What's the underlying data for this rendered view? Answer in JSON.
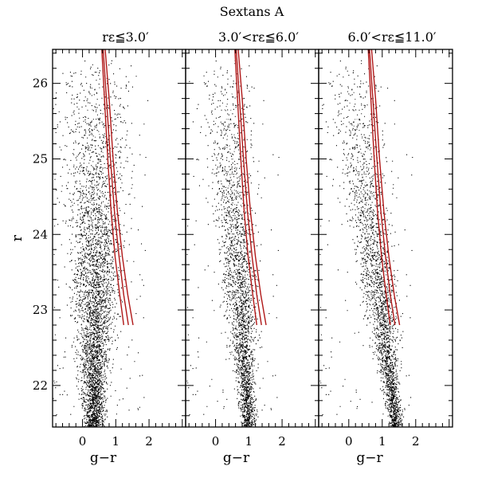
{
  "figure": {
    "title": "Sextans A"
  },
  "chart_data": {
    "type": "scatter",
    "title": "Sextans A",
    "xlabel": "g−r",
    "ylabel": "r",
    "xlim": [
      -0.9,
      3.1
    ],
    "ylim": [
      26.45,
      21.45
    ],
    "y_inverted": true,
    "x_ticks": [
      0,
      1,
      2
    ],
    "x_tick_labels": [
      "0",
      "1",
      "2"
    ],
    "y_ticks": [
      22,
      23,
      24,
      25,
      26
    ],
    "y_tick_labels": [
      "22",
      "23",
      "24",
      "25",
      "26"
    ],
    "grid": false,
    "panels": [
      {
        "label": "rε≦3.0′",
        "density_center": [
          [
            22.8,
            0.35
          ],
          [
            25.5,
            0.4
          ]
        ],
        "spread": 0.45,
        "star_count": 9000,
        "isochrones": [
          {
            "name": "",
            "color": "#b01818",
            "points": [
              [
                0.58,
                26.45
              ],
              [
                0.66,
                25.8
              ],
              [
                0.76,
                25.0
              ],
              [
                0.86,
                24.3
              ],
              [
                0.98,
                23.7
              ],
              [
                1.12,
                23.2
              ],
              [
                1.24,
                22.8
              ]
            ]
          },
          {
            "name": "",
            "color": "#b01818",
            "points": [
              [
                0.62,
                26.45
              ],
              [
                0.72,
                25.8
              ],
              [
                0.84,
                25.0
              ],
              [
                0.96,
                24.3
              ],
              [
                1.1,
                23.7
              ],
              [
                1.24,
                23.2
              ],
              [
                1.38,
                22.8
              ]
            ]
          },
          {
            "name": "",
            "color": "#b01818",
            "points": [
              [
                0.68,
                26.45
              ],
              [
                0.8,
                25.8
              ],
              [
                0.92,
                25.0
              ],
              [
                1.05,
                24.3
              ],
              [
                1.2,
                23.7
              ],
              [
                1.36,
                23.2
              ],
              [
                1.52,
                22.8
              ]
            ]
          }
        ]
      },
      {
        "label": "3.0′<rε≦6.0′",
        "density_center": [
          [
            23.0,
            0.75
          ],
          [
            26.0,
            0.3
          ]
        ],
        "spread": 0.35,
        "star_count": 6500,
        "isochrones": [
          {
            "name": "",
            "color": "#b01818",
            "points": [
              [
                0.58,
                26.45
              ],
              [
                0.66,
                25.8
              ],
              [
                0.76,
                25.0
              ],
              [
                0.86,
                24.3
              ],
              [
                0.98,
                23.7
              ],
              [
                1.12,
                23.2
              ],
              [
                1.24,
                22.8
              ]
            ]
          },
          {
            "name": "",
            "color": "#b01818",
            "points": [
              [
                0.62,
                26.45
              ],
              [
                0.72,
                25.8
              ],
              [
                0.84,
                25.0
              ],
              [
                0.96,
                24.3
              ],
              [
                1.1,
                23.7
              ],
              [
                1.24,
                23.2
              ],
              [
                1.38,
                22.8
              ]
            ]
          },
          {
            "name": "",
            "color": "#b01818",
            "points": [
              [
                0.68,
                26.45
              ],
              [
                0.8,
                25.8
              ],
              [
                0.92,
                25.0
              ],
              [
                1.05,
                24.3
              ],
              [
                1.2,
                23.7
              ],
              [
                1.36,
                23.2
              ],
              [
                1.52,
                22.8
              ]
            ]
          }
        ]
      },
      {
        "label": "6.0′<rε≦11.0′",
        "density_center": [
          [
            23.2,
            0.9
          ],
          [
            26.0,
            0.1
          ]
        ],
        "spread": 0.38,
        "star_count": 7000,
        "isochrones": [
          {
            "name": "",
            "color": "#b01818",
            "points": [
              [
                0.58,
                26.45
              ],
              [
                0.66,
                25.8
              ],
              [
                0.76,
                25.0
              ],
              [
                0.86,
                24.3
              ],
              [
                0.98,
                23.7
              ],
              [
                1.12,
                23.2
              ],
              [
                1.24,
                22.8
              ]
            ]
          },
          {
            "name": "",
            "color": "#b01818",
            "points": [
              [
                0.62,
                26.45
              ],
              [
                0.72,
                25.8
              ],
              [
                0.84,
                25.0
              ],
              [
                0.96,
                24.3
              ],
              [
                1.1,
                23.7
              ],
              [
                1.24,
                23.2
              ],
              [
                1.38,
                22.8
              ]
            ]
          },
          {
            "name": "",
            "color": "#b01818",
            "points": [
              [
                0.68,
                26.45
              ],
              [
                0.8,
                25.8
              ],
              [
                0.92,
                25.0
              ],
              [
                1.05,
                24.3
              ],
              [
                1.2,
                23.7
              ],
              [
                1.36,
                23.2
              ],
              [
                1.52,
                22.8
              ]
            ]
          }
        ]
      }
    ]
  }
}
